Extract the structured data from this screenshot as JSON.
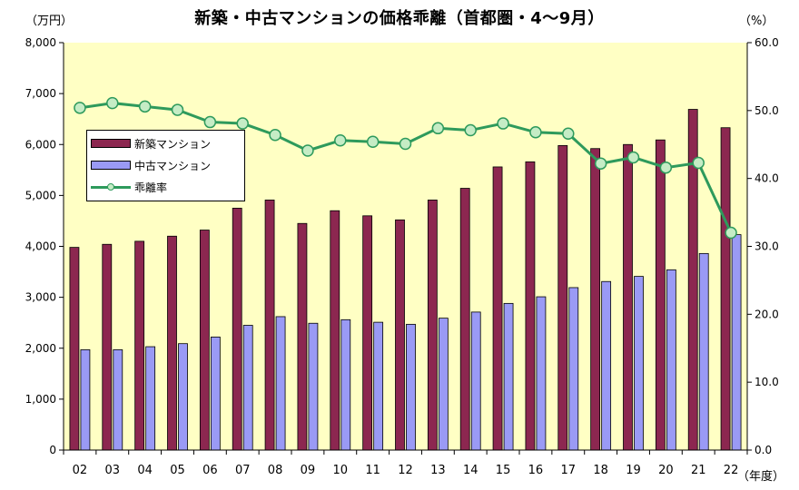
{
  "chart_data": {
    "type": "bar",
    "title": "新築・中古マンションの価格乖離（首都圏・4～9月）",
    "y_left_unit": "（万円）",
    "y_right_unit": "（%）",
    "x_unit": "（年度）",
    "categories": [
      "02",
      "03",
      "04",
      "05",
      "06",
      "07",
      "08",
      "09",
      "10",
      "11",
      "12",
      "13",
      "14",
      "15",
      "16",
      "17",
      "18",
      "19",
      "20",
      "21",
      "22"
    ],
    "y_left_range": [
      0,
      8000
    ],
    "y_left_ticks": [
      "0",
      "1,000",
      "2,000",
      "3,000",
      "4,000",
      "5,000",
      "6,000",
      "7,000",
      "8,000"
    ],
    "y_right_range": [
      0,
      60
    ],
    "y_right_ticks": [
      "0.0",
      "10.0",
      "20.0",
      "30.0",
      "40.0",
      "50.0",
      "60.0"
    ],
    "grid": false,
    "legend_position": "upper-left",
    "series": [
      {
        "name": "新築マンション",
        "kind": "bar",
        "axis": "left",
        "color": "#8c2750",
        "values": [
          3980,
          4040,
          4100,
          4200,
          4320,
          4750,
          4910,
          4450,
          4700,
          4600,
          4520,
          4910,
          5140,
          5560,
          5660,
          5980,
          5920,
          6000,
          6090,
          6690,
          6330
        ]
      },
      {
        "name": "中古マンション",
        "kind": "bar",
        "axis": "left",
        "color": "#9a9af5",
        "values": [
          1970,
          1970,
          2030,
          2090,
          2220,
          2450,
          2620,
          2490,
          2560,
          2510,
          2470,
          2590,
          2710,
          2880,
          3010,
          3190,
          3310,
          3410,
          3540,
          3860,
          4230
        ]
      },
      {
        "name": "乖離率",
        "kind": "line",
        "axis": "right",
        "color": "#2e9a5c",
        "values": [
          50.4,
          51.1,
          50.6,
          50.1,
          48.3,
          48.1,
          46.4,
          44.1,
          45.6,
          45.4,
          45.1,
          47.4,
          47.1,
          48.1,
          46.8,
          46.6,
          42.2,
          43.1,
          41.6,
          42.3,
          32.0
        ]
      }
    ]
  }
}
